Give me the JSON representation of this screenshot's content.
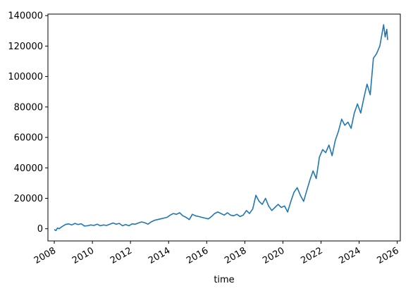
{
  "chart_data": {
    "type": "line",
    "xlabel": "time",
    "ylabel": "",
    "title": "",
    "grid": false,
    "legend": "none",
    "xlim": [
      "2007-09-01",
      "2026-03-01"
    ],
    "ylim": [
      -8000,
      141000
    ],
    "x_ticks": [
      {
        "date": "2008-01-01",
        "label": "2008"
      },
      {
        "date": "2010-01-01",
        "label": "2010"
      },
      {
        "date": "2012-01-01",
        "label": "2012"
      },
      {
        "date": "2014-01-01",
        "label": "2014"
      },
      {
        "date": "2016-01-01",
        "label": "2016"
      },
      {
        "date": "2018-01-01",
        "label": "2018"
      },
      {
        "date": "2020-01-01",
        "label": "2020"
      },
      {
        "date": "2022-01-01",
        "label": "2022"
      },
      {
        "date": "2024-01-01",
        "label": "2024"
      },
      {
        "date": "2026-01-01",
        "label": "2026"
      }
    ],
    "y_ticks": [
      {
        "value": 0,
        "label": "0"
      },
      {
        "value": 20000,
        "label": "20000"
      },
      {
        "value": 40000,
        "label": "40000"
      },
      {
        "value": 60000,
        "label": "60000"
      },
      {
        "value": 80000,
        "label": "80000"
      },
      {
        "value": 100000,
        "label": "100000"
      },
      {
        "value": 120000,
        "label": "120000"
      },
      {
        "value": 140000,
        "label": "140000"
      }
    ],
    "series": [
      {
        "color": "#1f77b4",
        "points": [
          [
            "2008-01-01",
            -500
          ],
          [
            "2008-02-01",
            -1200
          ],
          [
            "2008-03-01",
            500
          ],
          [
            "2008-04-01",
            0
          ],
          [
            "2008-06-01",
            1500
          ],
          [
            "2008-08-01",
            2800
          ],
          [
            "2008-10-01",
            3200
          ],
          [
            "2008-12-01",
            2500
          ],
          [
            "2009-02-01",
            3500
          ],
          [
            "2009-04-01",
            2800
          ],
          [
            "2009-06-01",
            3300
          ],
          [
            "2009-08-01",
            1800
          ],
          [
            "2009-10-01",
            2000
          ],
          [
            "2009-12-01",
            2500
          ],
          [
            "2010-02-01",
            2200
          ],
          [
            "2010-04-01",
            3000
          ],
          [
            "2010-06-01",
            2000
          ],
          [
            "2010-08-01",
            2500
          ],
          [
            "2010-10-01",
            2200
          ],
          [
            "2010-12-01",
            3000
          ],
          [
            "2011-02-01",
            3800
          ],
          [
            "2011-04-01",
            3000
          ],
          [
            "2011-06-01",
            3500
          ],
          [
            "2011-08-01",
            2000
          ],
          [
            "2011-10-01",
            2800
          ],
          [
            "2011-12-01",
            2000
          ],
          [
            "2012-02-01",
            3200
          ],
          [
            "2012-04-01",
            3000
          ],
          [
            "2012-06-01",
            3800
          ],
          [
            "2012-08-01",
            4500
          ],
          [
            "2012-10-01",
            4000
          ],
          [
            "2012-12-01",
            3000
          ],
          [
            "2013-02-01",
            4500
          ],
          [
            "2013-04-01",
            5500
          ],
          [
            "2013-06-01",
            6000
          ],
          [
            "2013-08-01",
            6500
          ],
          [
            "2013-10-01",
            7000
          ],
          [
            "2013-12-01",
            7500
          ],
          [
            "2014-02-01",
            9000
          ],
          [
            "2014-04-01",
            10000
          ],
          [
            "2014-06-01",
            9500
          ],
          [
            "2014-08-01",
            10500
          ],
          [
            "2014-10-01",
            8500
          ],
          [
            "2014-12-01",
            7500
          ],
          [
            "2015-02-01",
            6000
          ],
          [
            "2015-04-01",
            9500
          ],
          [
            "2015-06-01",
            8500
          ],
          [
            "2015-08-01",
            8000
          ],
          [
            "2015-10-01",
            7500
          ],
          [
            "2015-12-01",
            7000
          ],
          [
            "2016-02-01",
            6500
          ],
          [
            "2016-04-01",
            8000
          ],
          [
            "2016-06-01",
            10000
          ],
          [
            "2016-08-01",
            11000
          ],
          [
            "2016-10-01",
            10000
          ],
          [
            "2016-12-01",
            9000
          ],
          [
            "2017-02-01",
            10500
          ],
          [
            "2017-04-01",
            9000
          ],
          [
            "2017-06-01",
            8500
          ],
          [
            "2017-08-01",
            9500
          ],
          [
            "2017-10-01",
            8000
          ],
          [
            "2017-12-01",
            9000
          ],
          [
            "2018-02-01",
            12000
          ],
          [
            "2018-04-01",
            10000
          ],
          [
            "2018-06-01",
            13000
          ],
          [
            "2018-08-01",
            22000
          ],
          [
            "2018-10-01",
            18000
          ],
          [
            "2018-12-01",
            16000
          ],
          [
            "2019-02-01",
            20000
          ],
          [
            "2019-04-01",
            15000
          ],
          [
            "2019-06-01",
            12000
          ],
          [
            "2019-08-01",
            14000
          ],
          [
            "2019-10-01",
            16000
          ],
          [
            "2019-12-01",
            14000
          ],
          [
            "2020-02-01",
            15000
          ],
          [
            "2020-04-01",
            11000
          ],
          [
            "2020-06-01",
            18000
          ],
          [
            "2020-08-01",
            24000
          ],
          [
            "2020-10-01",
            27000
          ],
          [
            "2020-12-01",
            22000
          ],
          [
            "2021-02-01",
            18000
          ],
          [
            "2021-04-01",
            25000
          ],
          [
            "2021-06-01",
            32000
          ],
          [
            "2021-08-01",
            38000
          ],
          [
            "2021-10-01",
            33000
          ],
          [
            "2021-12-01",
            47000
          ],
          [
            "2022-02-01",
            52000
          ],
          [
            "2022-04-01",
            50000
          ],
          [
            "2022-06-01",
            55000
          ],
          [
            "2022-08-01",
            48000
          ],
          [
            "2022-10-01",
            58000
          ],
          [
            "2022-12-01",
            64000
          ],
          [
            "2023-02-01",
            72000
          ],
          [
            "2023-04-01",
            68000
          ],
          [
            "2023-06-01",
            70000
          ],
          [
            "2023-08-01",
            66000
          ],
          [
            "2023-10-01",
            76000
          ],
          [
            "2023-12-01",
            82000
          ],
          [
            "2024-02-01",
            76000
          ],
          [
            "2024-04-01",
            86000
          ],
          [
            "2024-06-01",
            95000
          ],
          [
            "2024-08-01",
            88000
          ],
          [
            "2024-10-01",
            112000
          ],
          [
            "2024-12-01",
            115000
          ],
          [
            "2025-02-01",
            120000
          ],
          [
            "2025-03-15",
            128000
          ],
          [
            "2025-04-15",
            134000
          ],
          [
            "2025-05-15",
            126000
          ],
          [
            "2025-06-15",
            131000
          ],
          [
            "2025-07-01",
            124000
          ]
        ]
      }
    ]
  }
}
